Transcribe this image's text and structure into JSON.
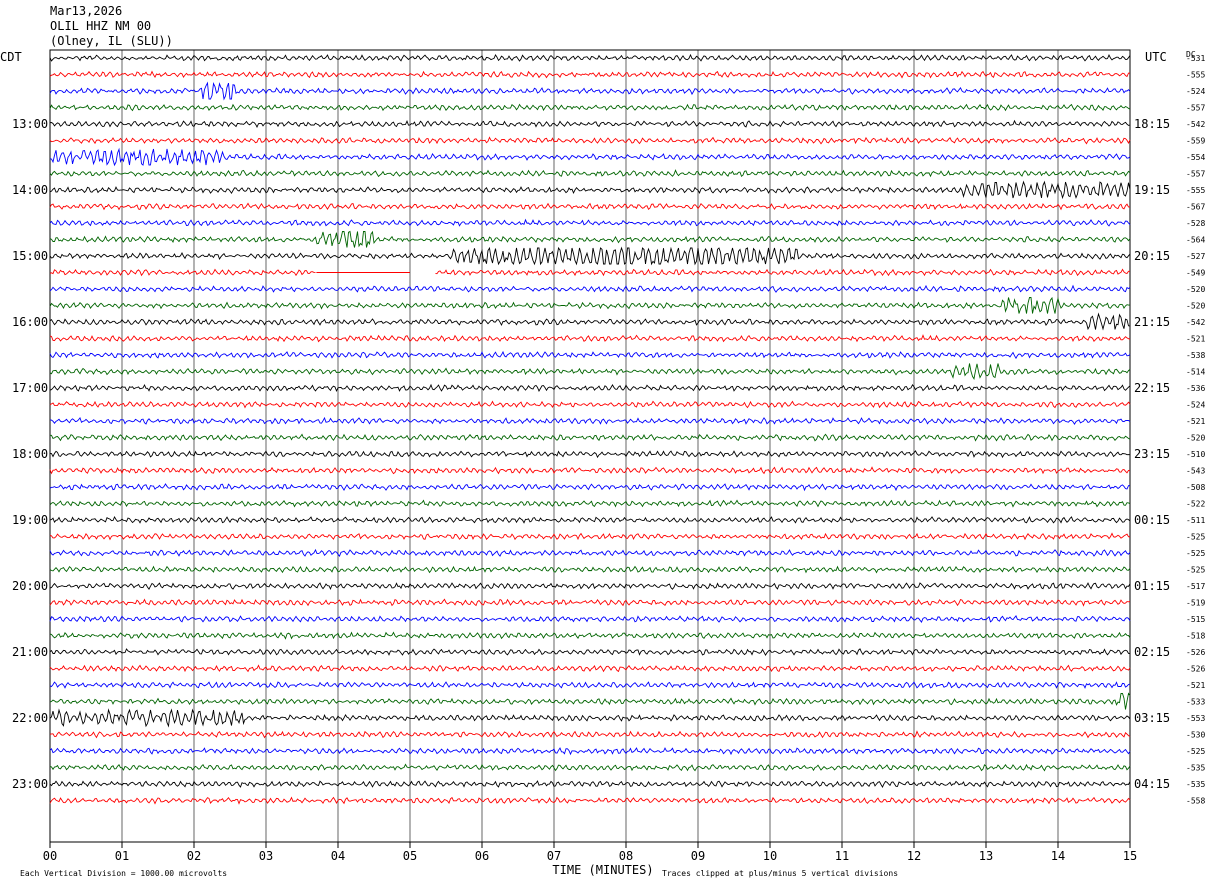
{
  "header": {
    "date": "Mar13,2026",
    "station": "OLIL HHZ NM 00",
    "location": "(Olney, IL (SLU))"
  },
  "chart_data": {
    "type": "line",
    "left_zone": "CDT",
    "right_zone": "UTC",
    "dc_label": "DC",
    "xlabel": "TIME (MINUTES)",
    "x_ticks": [
      "00",
      "01",
      "02",
      "03",
      "04",
      "05",
      "06",
      "07",
      "08",
      "09",
      "10",
      "11",
      "12",
      "13",
      "14",
      "15"
    ],
    "xlim": [
      0,
      15
    ],
    "rows_per_hour": 4,
    "trace_colors": [
      "#000000",
      "#ff0000",
      "#0000ff",
      "#006400"
    ],
    "left_hour_labels": [
      {
        "row": 4,
        "text": "13:00"
      },
      {
        "row": 8,
        "text": "14:00"
      },
      {
        "row": 12,
        "text": "15:00"
      },
      {
        "row": 16,
        "text": "16:00"
      },
      {
        "row": 20,
        "text": "17:00"
      },
      {
        "row": 24,
        "text": "18:00"
      },
      {
        "row": 28,
        "text": "19:00"
      },
      {
        "row": 32,
        "text": "20:00"
      },
      {
        "row": 36,
        "text": "21:00"
      },
      {
        "row": 40,
        "text": "22:00"
      },
      {
        "row": 44,
        "text": "23:00"
      }
    ],
    "right_hour_labels": [
      {
        "row": 4,
        "text": "18:15"
      },
      {
        "row": 8,
        "text": "19:15"
      },
      {
        "row": 12,
        "text": "20:15"
      },
      {
        "row": 16,
        "text": "21:15"
      },
      {
        "row": 20,
        "text": "22:15"
      },
      {
        "row": 24,
        "text": "23:15"
      },
      {
        "row": 28,
        "text": "00:15"
      },
      {
        "row": 32,
        "text": "01:15"
      },
      {
        "row": 36,
        "text": "02:15"
      },
      {
        "row": 40,
        "text": "03:15"
      },
      {
        "row": 44,
        "text": "04:15"
      }
    ],
    "dc_offsets": [
      -531,
      -555,
      -524,
      -557,
      -542,
      -559,
      -554,
      -557,
      -555,
      -567,
      -528,
      -564,
      -527,
      -549,
      -520,
      -520,
      -542,
      -521,
      -538,
      -514,
      -536,
      -524,
      -521,
      -520,
      -510,
      -543,
      -508,
      -522,
      -511,
      -525,
      -525,
      -525,
      -517,
      -519,
      -515,
      -518,
      -526,
      -526,
      -521,
      -533,
      -553,
      -530,
      -525,
      -535,
      -535,
      -558
    ],
    "events": [
      {
        "row": 2,
        "start_min": 2.1,
        "end_min": 2.6,
        "amp": 2.4
      },
      {
        "row": 6,
        "start_min": 0.0,
        "end_min": 2.4,
        "amp": 1.5
      },
      {
        "row": 8,
        "start_min": 12.6,
        "end_min": 15.0,
        "amp": 1.4
      },
      {
        "row": 11,
        "start_min": 3.7,
        "end_min": 4.5,
        "amp": 3.0
      },
      {
        "row": 12,
        "start_min": 5.6,
        "end_min": 10.4,
        "amp": 2.6
      },
      {
        "row": 15,
        "start_min": 13.2,
        "end_min": 14.0,
        "amp": 2.2
      },
      {
        "row": 16,
        "start_min": 14.4,
        "end_min": 15.0,
        "amp": 1.6
      },
      {
        "row": 19,
        "start_min": 12.5,
        "end_min": 13.2,
        "amp": 1.7
      },
      {
        "row": 40,
        "start_min": 0.0,
        "end_min": 2.7,
        "amp": 1.6
      },
      {
        "row": 39,
        "start_min": 14.8,
        "end_min": 15.0,
        "amp": 2.0
      }
    ],
    "gaps": [
      {
        "row": 13,
        "start_min": 3.7,
        "end_min": 5.0,
        "flat": true
      },
      {
        "row": 13,
        "start_min": 5.0,
        "end_min": 5.35,
        "flat": false
      }
    ],
    "footer_left": "Each Vertical Division = 1000.00 microvolts",
    "footer_right": "Traces clipped at plus/minus 5 vertical divisions"
  }
}
